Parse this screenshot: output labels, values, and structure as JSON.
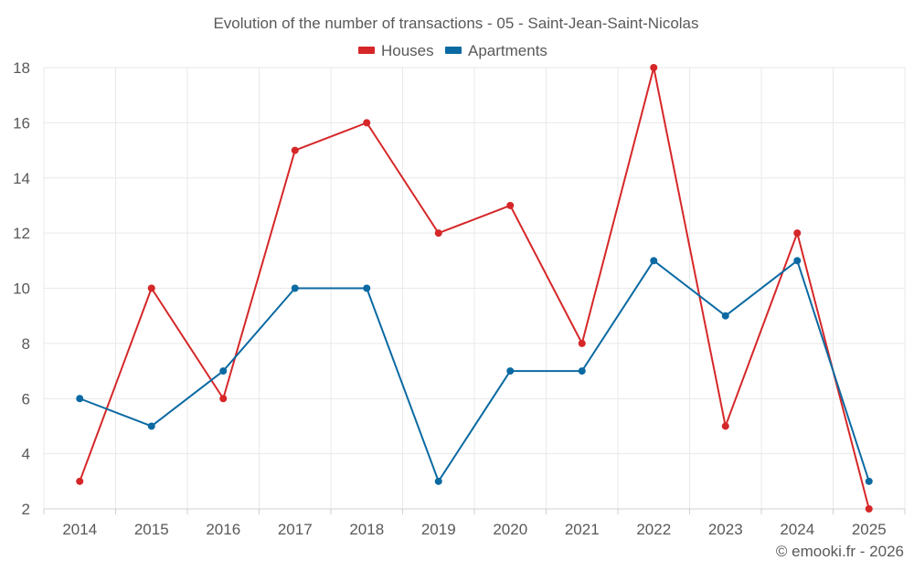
{
  "chart_data": {
    "type": "line",
    "title": "Evolution of the number of transactions - 05 - Saint-Jean-Saint-Nicolas",
    "categories": [
      "2014",
      "2015",
      "2016",
      "2017",
      "2018",
      "2019",
      "2020",
      "2021",
      "2022",
      "2023",
      "2024",
      "2025"
    ],
    "series": [
      {
        "name": "Houses",
        "color": "#d62728",
        "values": [
          3,
          10,
          6,
          15,
          16,
          12,
          13,
          8,
          18,
          5,
          12,
          2
        ]
      },
      {
        "name": "Apartments",
        "color": "#0b6aa2",
        "values": [
          6,
          5,
          7,
          10,
          10,
          3,
          7,
          7,
          11,
          9,
          11,
          3
        ]
      }
    ],
    "ylim": [
      2,
      18
    ],
    "yticks": [
      2,
      4,
      6,
      8,
      10,
      12,
      14,
      16,
      18
    ],
    "xlabel": "",
    "ylabel": "",
    "grid": true,
    "legend_position": "top-center"
  },
  "credit": "© emooki.fr - 2026"
}
